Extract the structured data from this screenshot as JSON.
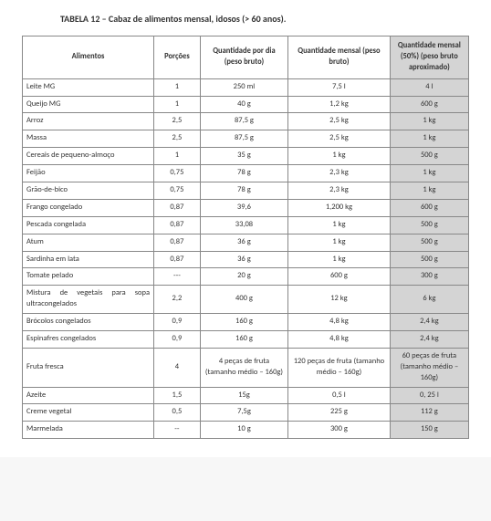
{
  "title": "TABELA 12 – Cabaz de alimentos mensal, idosos (> 60 anos).",
  "columns": [
    "Alimentos",
    "Porções",
    "Quantidade por dia (peso bruto)",
    "Quantidade mensal (peso bruto)",
    "Quantidade mensal (50%) (peso bruto aproximado)"
  ],
  "rows": [
    {
      "a": "Leite MG",
      "p": "1",
      "qd": "250 ml",
      "qm": "7,5 l",
      "qh": "4 l"
    },
    {
      "a": "Queijo MG",
      "p": "1",
      "qd": "40 g",
      "qm": "1,2 kg",
      "qh": "600 g"
    },
    {
      "a": "Arroz",
      "p": "2,5",
      "qd": "87,5 g",
      "qm": "2,5 kg",
      "qh": "1 kg"
    },
    {
      "a": "Massa",
      "p": "2,5",
      "qd": "87,5 g",
      "qm": "2,5 kg",
      "qh": "1 kg"
    },
    {
      "a": "Cereais de pequeno-almoço",
      "p": "1",
      "qd": "35 g",
      "qm": "1 kg",
      "qh": "500 g"
    },
    {
      "a": "Feijão",
      "p": "0,75",
      "qd": "78 g",
      "qm": "2,3 kg",
      "qh": "1 kg"
    },
    {
      "a": "Grão-de-bico",
      "p": "0,75",
      "qd": "78 g",
      "qm": "2,3 kg",
      "qh": "1 kg"
    },
    {
      "a": "Frango congelado",
      "p": "0,87",
      "qd": "39,6",
      "qm": "1,200 kg",
      "qh": "600 g"
    },
    {
      "a": "Pescada congelada",
      "p": "0,87",
      "qd": "33,08",
      "qm": "1 kg",
      "qh": "500 g"
    },
    {
      "a": "Atum",
      "p": "0,87",
      "qd": "36 g",
      "qm": "1 kg",
      "qh": "500 g"
    },
    {
      "a": "Sardinha em lata",
      "p": "0,87",
      "qd": "36 g",
      "qm": "1 kg",
      "qh": "500 g"
    },
    {
      "a": "Tomate pelado",
      "p": "---",
      "qd": "20 g",
      "qm": "600 g",
      "qh": "300 g"
    },
    {
      "a": "Mistura de vegetais para sopa ultracongelados",
      "justify": true,
      "p": "2,2",
      "qd": "400 g",
      "qm": "12 kg",
      "qh": "6 kg"
    },
    {
      "a": "Brócolos congelados",
      "p": "0,9",
      "qd": "160 g",
      "qm": "4,8 kg",
      "qh": "2,4 kg"
    },
    {
      "a": "Espinafres congelados",
      "p": "0,9",
      "qd": "160 g",
      "qm": "4,8 kg",
      "qh": "2,4 kg"
    },
    {
      "a": "Fruta fresca",
      "p": "4",
      "qd": "4 peças de fruta (tamanho médio – 160g)",
      "qm": "120 peças de fruta (tamanho médio – 160g)",
      "qh": "60 peças de fruta (tamanho médio – 160g)"
    },
    {
      "a": "Azeite",
      "p": "1,5",
      "qd": "15g",
      "qm": "0,5 l",
      "qh": "0, 25 l"
    },
    {
      "a": "Creme vegetal",
      "p": "0,5",
      "qd": "7,5g",
      "qm": "225 g",
      "qh": "112 g"
    },
    {
      "a": "Marmelada",
      "p": "--",
      "qd": "10 g",
      "qm": "300 g",
      "qh": "150 g"
    }
  ]
}
